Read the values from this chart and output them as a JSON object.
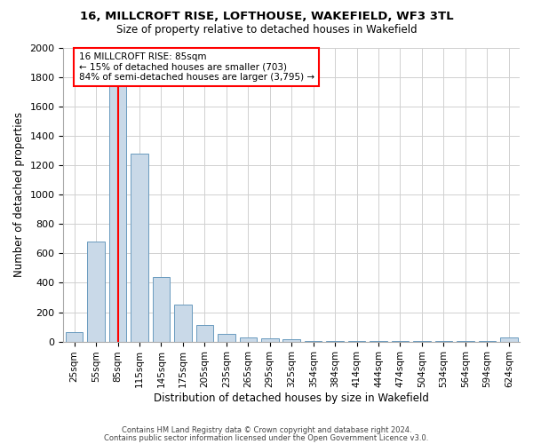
{
  "title": "16, MILLCROFT RISE, LOFTHOUSE, WAKEFIELD, WF3 3TL",
  "subtitle": "Size of property relative to detached houses in Wakefield",
  "xlabel": "Distribution of detached houses by size in Wakefield",
  "ylabel": "Number of detached properties",
  "bar_color": "#c9d9e8",
  "bar_edge_color": "#6a9bbf",
  "categories": [
    "25sqm",
    "55sqm",
    "85sqm",
    "115sqm",
    "145sqm",
    "175sqm",
    "205sqm",
    "235sqm",
    "265sqm",
    "295sqm",
    "325sqm",
    "354sqm",
    "384sqm",
    "414sqm",
    "444sqm",
    "474sqm",
    "504sqm",
    "534sqm",
    "564sqm",
    "594sqm",
    "624sqm"
  ],
  "values": [
    65,
    680,
    1900,
    1280,
    440,
    250,
    110,
    50,
    30,
    20,
    15,
    5,
    5,
    5,
    5,
    5,
    5,
    5,
    5,
    5,
    30
  ],
  "ylim": [
    0,
    2000
  ],
  "yticks": [
    0,
    200,
    400,
    600,
    800,
    1000,
    1200,
    1400,
    1600,
    1800,
    2000
  ],
  "property_line_x": 2,
  "annotation_text": "16 MILLCROFT RISE: 85sqm\n← 15% of detached houses are smaller (703)\n84% of semi-detached houses are larger (3,795) →",
  "annotation_box_color": "white",
  "annotation_box_edge_color": "red",
  "red_line_color": "red",
  "footer_line1": "Contains HM Land Registry data © Crown copyright and database right 2024.",
  "footer_line2": "Contains public sector information licensed under the Open Government Licence v3.0.",
  "grid_color": "#d0d0d0",
  "background_color": "white"
}
